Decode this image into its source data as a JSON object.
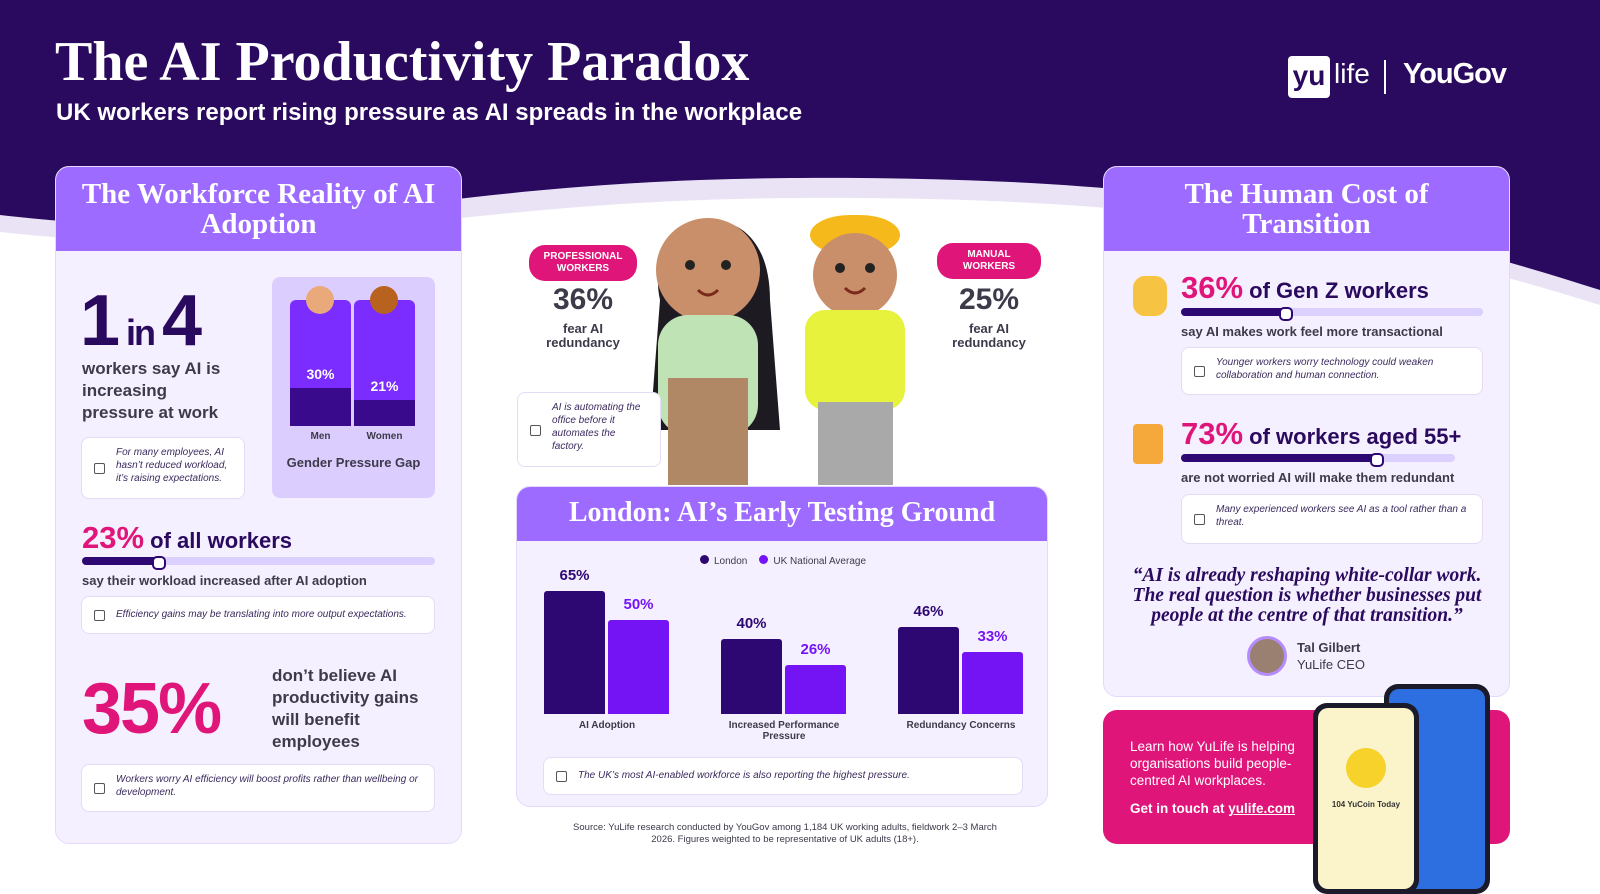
{
  "header": {
    "title": "The AI Productivity Paradox",
    "subtitle": "UK workers report rising pressure as AI spreads in the workplace",
    "logo_yu": "yu",
    "logo_life": "life",
    "logo_yougov": "YouGov"
  },
  "left_panel": {
    "title": "The Workforce Reality of AI Adoption",
    "ratio": {
      "first": "1",
      "middle": "in",
      "second": "4",
      "text": "workers say AI is increasing pressure at work",
      "note": "For many employees, AI hasn’t reduced workload, it’s raising expectations."
    },
    "gender_chart": {
      "type": "bar",
      "title": "Gender Pressure Gap",
      "categories": [
        "Men",
        "Women"
      ],
      "values": [
        30,
        21
      ],
      "value_labels": [
        "30%",
        "21%"
      ],
      "ylim": [
        0,
        100
      ],
      "colors": {
        "fill": "#3a0a8c",
        "track": "#7b2cff"
      }
    },
    "workload": {
      "value": 23,
      "value_label": "23%",
      "label": "of all workers",
      "text": "say their workload increased after AI adoption",
      "note": "Efficiency gains may be translating into more output expectations.",
      "xlim": [
        0,
        100
      ]
    },
    "benefit": {
      "value_label": "35%",
      "text": "don’t believe AI productivity gains will benefit employees",
      "note": "Workers worry AI efficiency will boost profits rather than wellbeing or development."
    }
  },
  "center": {
    "professional": {
      "tag": "PROFESSIONAL WORKERS",
      "value_label": "36%",
      "text": "fear AI redundancy"
    },
    "manual": {
      "tag": "MANUAL WORKERS",
      "value_label": "25%",
      "text": "fear AI redundancy"
    },
    "note": "AI is automating the office before it automates the factory.",
    "london_chart": {
      "type": "bar",
      "title": "London: AI’s Early Testing Ground",
      "categories": [
        "AI Adoption",
        "Increased Performance Pressure",
        "Redundancy Concerns"
      ],
      "series": [
        {
          "name": "London",
          "color": "#2e0872",
          "values": [
            65,
            40,
            46
          ],
          "value_labels": [
            "65%",
            "40%",
            "46%"
          ]
        },
        {
          "name": "UK National Average",
          "color": "#7414f5",
          "values": [
            50,
            26,
            33
          ],
          "value_labels": [
            "50%",
            "26%",
            "33%"
          ]
        }
      ],
      "ylim": [
        0,
        70
      ],
      "note": "The UK’s most AI-enabled workforce is also reporting the highest pressure."
    },
    "source": "Source: YuLife research conducted by YouGov among 1,184 UK working adults, fieldwork 2–3 March 2026. Figures weighted to be representative of UK adults (18+)."
  },
  "right_panel": {
    "title": "The Human Cost of Transition",
    "gen_z": {
      "value": 36,
      "value_label": "36%",
      "label": "of Gen Z workers",
      "text": "say AI makes work feel more transactional",
      "note": "Younger workers worry technology could weaken collaboration and human connection.",
      "xlim": [
        0,
        100
      ]
    },
    "aged_55": {
      "value": 73,
      "value_label": "73%",
      "label": "of workers aged 55+",
      "text": "are not worried AI will make them redundant",
      "note": "Many experienced workers see AI as a tool rather than a threat.",
      "xlim": [
        0,
        100
      ]
    },
    "quote": "“AI is already reshaping white-collar work. The real question is whether businesses put people at the centre of that transition.”",
    "person": "Tal Gilbert",
    "role": "YuLife CEO"
  },
  "cta": {
    "text": "Learn how YuLife is helping organisations build people-centred AI workplaces.",
    "link_prefix": "Get in touch at",
    "link": "yulife.com",
    "phone_text": "104 YuCoin Today"
  }
}
